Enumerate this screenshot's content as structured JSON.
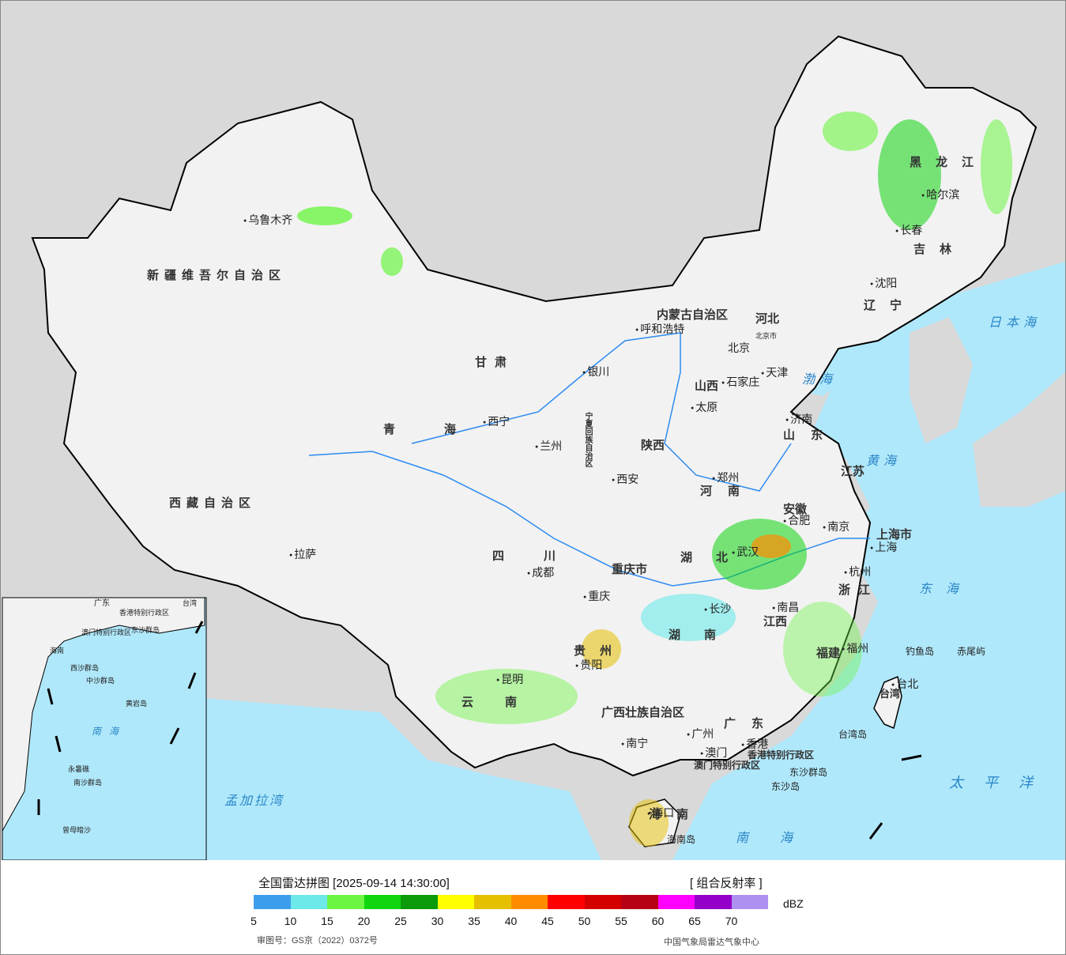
{
  "legend": {
    "title": "全国雷达拼图 [2025-09-14 14:30:00]",
    "product": "[ 组合反射率 ]",
    "unit": "dBZ",
    "colors": [
      "#3d9ded",
      "#6de9ea",
      "#6cf543",
      "#10d610",
      "#0a9a0a",
      "#ffff00",
      "#e6c000",
      "#ff8c00",
      "#ff0000",
      "#d40000",
      "#b70016",
      "#ff00ff",
      "#9500c8",
      "#ad90f0"
    ],
    "ticks": [
      "5",
      "10",
      "15",
      "20",
      "25",
      "30",
      "35",
      "40",
      "45",
      "50",
      "55",
      "60",
      "65",
      "70"
    ],
    "approval": "审图号：GS京（2022）0372号",
    "source": "中国气象局雷达气象中心"
  },
  "map": {
    "colors": {
      "sea": "#b0e8fb",
      "land_outside": "#d9d9d9",
      "china_land": "#f2f2f2",
      "border": "#000000",
      "river": "#2d8bf0"
    },
    "provinces": [
      "新疆维吾尔自治区",
      "西藏自治区",
      "青海",
      "甘肃",
      "内蒙古自治区",
      "黑龙江",
      "吉林",
      "辽宁",
      "河北",
      "山西",
      "陕西",
      "宁夏回族自治区",
      "四川",
      "重庆市",
      "贵州",
      "云南",
      "广西壮族自治区",
      "广东",
      "湖南",
      "湖北",
      "河南",
      "山东",
      "江苏",
      "安徽",
      "浙江",
      "江西",
      "福建",
      "台湾",
      "海南",
      "上海市",
      "香港特别行政区",
      "澳门特别行政区"
    ],
    "cities": [
      "乌鲁木齐",
      "拉萨",
      "西宁",
      "兰州",
      "银川",
      "呼和浩特",
      "北京市",
      "北京",
      "天津",
      "石家庄",
      "太原",
      "济南",
      "郑州",
      "西安",
      "成都",
      "重庆",
      "贵阳",
      "昆明",
      "南宁",
      "广州",
      "澳门",
      "香港",
      "长沙",
      "武汉",
      "合肥",
      "南京",
      "上海",
      "杭州",
      "南昌",
      "福州",
      "台北",
      "海口",
      "哈尔滨",
      "长春",
      "沈阳"
    ],
    "seas": [
      "渤海",
      "黄海",
      "东海",
      "南海",
      "日本海",
      "太平洋",
      "孟加拉湾"
    ],
    "islands": [
      "钓鱼岛",
      "赤尾屿",
      "台湾岛",
      "东沙群岛",
      "东沙岛",
      "海南岛"
    ],
    "inset_labels": [
      "南海",
      "广东",
      "香港特别行政区",
      "澳门特别行政区",
      "海南",
      "东沙群岛",
      "西沙群岛",
      "中沙群岛",
      "黄岩岛",
      "南沙群岛",
      "曾母暗沙",
      "永暑礁",
      "台湾"
    ]
  }
}
